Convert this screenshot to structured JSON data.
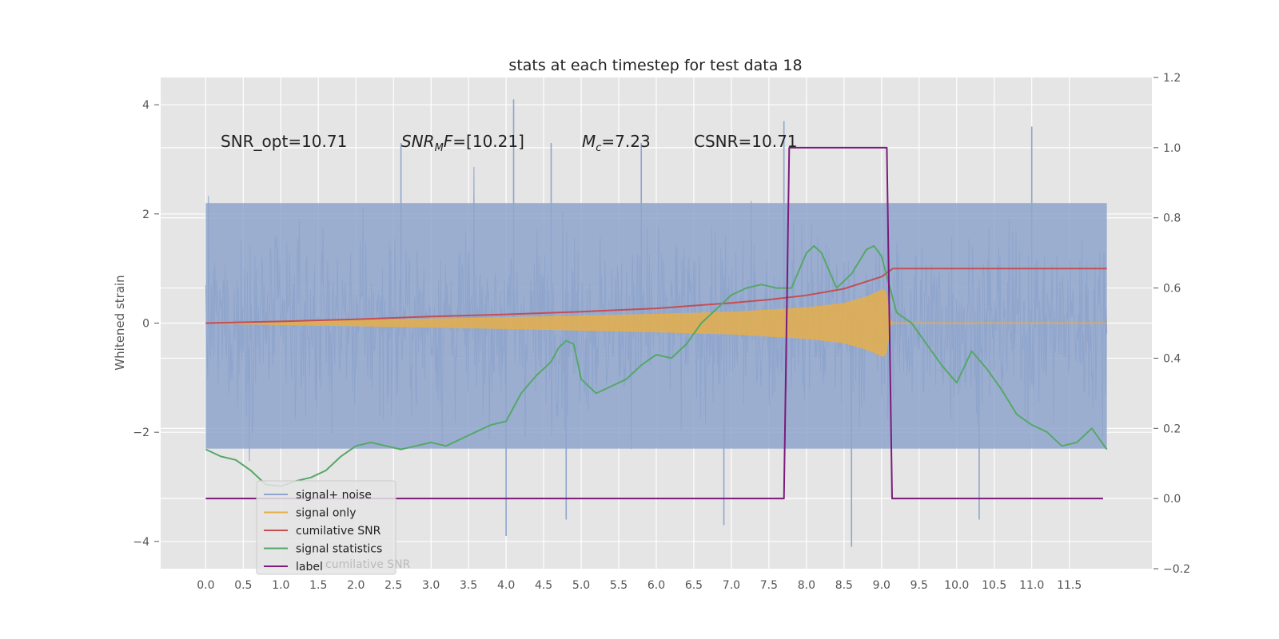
{
  "chart_data": {
    "type": "line",
    "title": "stats at each timestep for test data 18",
    "ylabel": "Whitened strain",
    "xlim": [
      -0.6,
      12.6
    ],
    "ylim": [
      -4.5,
      4.5
    ],
    "y2lim": [
      -0.2,
      1.2
    ],
    "grid": true,
    "x_ticks": [
      0.0,
      0.5,
      1.0,
      1.5,
      2.0,
      2.5,
      3.0,
      3.5,
      4.0,
      4.5,
      5.0,
      5.5,
      6.0,
      6.5,
      7.0,
      7.5,
      8.0,
      8.5,
      9.0,
      9.5,
      10.0,
      10.5,
      11.0,
      11.5
    ],
    "x_tick_labels": [
      "0.0",
      "0.5",
      "1.0",
      "1.5",
      "2.0",
      "2.5",
      "3.0",
      "3.5",
      "4.0",
      "4.5",
      "5.0",
      "5.5",
      "6.0",
      "6.5",
      "7.0",
      "7.5",
      "8.0",
      "8.5",
      "9.0",
      "9.5",
      "10.0",
      "10.5",
      "11.0",
      "11.5"
    ],
    "y_ticks": [
      -4,
      -2,
      0,
      2,
      4
    ],
    "y_tick_labels": [
      "−4",
      "−2",
      "0",
      "2",
      "4"
    ],
    "y2_ticks": [
      -0.2,
      0.0,
      0.2,
      0.4,
      0.6,
      0.8,
      1.0,
      1.2
    ],
    "y2_tick_labels": [
      "−0.2",
      "0.0",
      "0.2",
      "0.4",
      "0.6",
      "0.8",
      "1.0",
      "1.2"
    ],
    "annotations": {
      "snr_opt": "SNR_opt=10.71",
      "snr_mf_main": "SNR",
      "snr_mf_sub": "M",
      "snr_mf_tail": "F",
      "snr_mf_value": "=[10.21]",
      "mc_main": "M",
      "mc_sub": "c",
      "mc_value": "=7.23",
      "csnr": "CSNR=10.71"
    },
    "legend": {
      "placement": "lower-left",
      "entries": [
        "signal+ noise",
        "signal only",
        "cumilative SNR",
        "signal statistics",
        "label"
      ],
      "ghost_text": "cumilative SNR"
    },
    "series": [
      {
        "name": "signal+ noise",
        "axis": "left",
        "color": "#8fa5cc",
        "kind": "noise-band",
        "x_range": [
          0.0,
          12.0
        ],
        "envelope_upper": 2.2,
        "envelope_lower": -2.3,
        "peaks": [
          [
            2.6,
            3.3
          ],
          [
            4.1,
            4.1
          ],
          [
            4.6,
            3.3
          ],
          [
            5.8,
            3.3
          ],
          [
            7.7,
            3.7
          ],
          [
            11.0,
            3.6
          ]
        ],
        "troughs": [
          [
            4.0,
            -3.9
          ],
          [
            4.8,
            -3.6
          ],
          [
            6.9,
            -3.7
          ],
          [
            8.6,
            -4.1
          ],
          [
            10.3,
            -3.6
          ]
        ]
      },
      {
        "name": "signal only",
        "axis": "left",
        "color": "#e5ae4a",
        "kind": "chirp",
        "merger_x": 9.05,
        "amplitude_points": [
          [
            0.0,
            0.005
          ],
          [
            2.0,
            0.05
          ],
          [
            4.0,
            0.1
          ],
          [
            6.0,
            0.16
          ],
          [
            7.0,
            0.2
          ],
          [
            8.0,
            0.28
          ],
          [
            8.5,
            0.36
          ],
          [
            8.8,
            0.48
          ],
          [
            9.0,
            0.6
          ],
          [
            9.05,
            0.62
          ],
          [
            9.12,
            0.05
          ]
        ]
      },
      {
        "name": "cumilative SNR",
        "axis": "left",
        "color": "#c44e52",
        "x": [
          0.0,
          1.0,
          2.0,
          3.0,
          4.0,
          5.0,
          6.0,
          6.5,
          7.0,
          7.5,
          8.0,
          8.5,
          9.0,
          9.15,
          10.0,
          11.0,
          12.0
        ],
        "y": [
          0.0,
          0.03,
          0.07,
          0.12,
          0.16,
          0.21,
          0.27,
          0.32,
          0.37,
          0.43,
          0.51,
          0.63,
          0.85,
          1.0,
          1.0,
          1.0,
          1.0
        ]
      },
      {
        "name": "signal statistics",
        "axis": "right",
        "color": "#55a868",
        "x": [
          0.0,
          0.2,
          0.4,
          0.6,
          0.8,
          1.0,
          1.2,
          1.4,
          1.6,
          1.8,
          2.0,
          2.2,
          2.4,
          2.6,
          2.8,
          3.0,
          3.2,
          3.4,
          3.6,
          3.8,
          4.0,
          4.2,
          4.4,
          4.6,
          4.7,
          4.8,
          4.9,
          5.0,
          5.2,
          5.4,
          5.6,
          5.8,
          6.0,
          6.2,
          6.4,
          6.6,
          6.8,
          7.0,
          7.2,
          7.4,
          7.6,
          7.8,
          7.9,
          8.0,
          8.1,
          8.2,
          8.4,
          8.6,
          8.8,
          8.9,
          9.0,
          9.2,
          9.4,
          9.6,
          9.8,
          10.0,
          10.2,
          10.4,
          10.6,
          10.8,
          11.0,
          11.2,
          11.4,
          11.6,
          11.8,
          12.0
        ],
        "y": [
          0.14,
          0.12,
          0.11,
          0.08,
          0.04,
          0.035,
          0.05,
          0.06,
          0.08,
          0.12,
          0.15,
          0.16,
          0.15,
          0.14,
          0.15,
          0.16,
          0.15,
          0.17,
          0.19,
          0.21,
          0.22,
          0.3,
          0.35,
          0.39,
          0.43,
          0.45,
          0.44,
          0.34,
          0.3,
          0.32,
          0.34,
          0.38,
          0.41,
          0.4,
          0.44,
          0.5,
          0.54,
          0.58,
          0.6,
          0.61,
          0.6,
          0.6,
          0.65,
          0.7,
          0.72,
          0.7,
          0.6,
          0.64,
          0.71,
          0.72,
          0.69,
          0.53,
          0.5,
          0.44,
          0.38,
          0.33,
          0.42,
          0.37,
          0.31,
          0.24,
          0.21,
          0.19,
          0.15,
          0.16,
          0.2,
          0.14
        ]
      },
      {
        "name": "label",
        "axis": "right",
        "color": "#7b1a7b",
        "x": [
          0.0,
          7.7,
          7.77,
          9.07,
          9.14,
          11.95
        ],
        "y": [
          0.0,
          0.0,
          1.0,
          1.0,
          0.0,
          0.0
        ]
      }
    ]
  }
}
